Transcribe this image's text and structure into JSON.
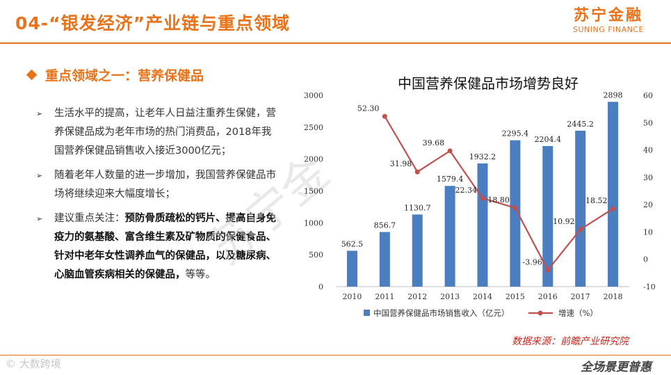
{
  "header": {
    "title": "04-“银发经济”产业链与重点领域",
    "brand_cn": "苏宁金融",
    "brand_en": "SUNING FINANCE"
  },
  "section": {
    "title": "重点领域之一：营养保健品"
  },
  "bullets": [
    {
      "marker": "➢",
      "segments": [
        {
          "text": "生活水平的提高，让老年人日益注重养生保健，营养保健品成为老年市场的热门消费品，2018年我国营养保健品销售收入接近3000亿元；",
          "bold": false
        }
      ]
    },
    {
      "marker": "➢",
      "segments": [
        {
          "text": "随着老年人数量的进一步增加，我国营养保健品市场将继续迎来大幅度增长；",
          "bold": false
        }
      ]
    },
    {
      "marker": "➢",
      "segments": [
        {
          "text": "建议重点关注：",
          "bold": false
        },
        {
          "text": "预防骨质疏松的钙片、提高自身免疫力的氨基酸、富含维生素及矿物质的保健食品、针对中老年女性调养血气的保健品，以及糖尿病、心脑血管疾病相关的保健品，",
          "bold": true
        },
        {
          "text": "等等。",
          "bold": false
        }
      ]
    }
  ],
  "watermark": "苏宁金",
  "chart_data": {
    "type": "bar",
    "title": "中国营养保健品市场增势良好",
    "categories": [
      "2010",
      "2011",
      "2012",
      "2013",
      "2014",
      "2015",
      "2016",
      "2017",
      "2018"
    ],
    "series": [
      {
        "name": "中国营养保健品市场销售收入（亿元）",
        "type": "bar",
        "axis": "left",
        "color": "#4A7EC0",
        "values": [
          562.5,
          856.7,
          1130.7,
          1579.4,
          1932.2,
          2295.4,
          2204.4,
          2445.2,
          2898
        ],
        "labels": [
          "562.5",
          "856.7",
          "1130.7",
          "1579.4",
          "1932.2",
          "2295.4",
          "2204.4",
          "2445.2",
          "2898"
        ]
      },
      {
        "name": "增速（%）",
        "type": "line",
        "axis": "right",
        "color": "#C0504D",
        "values": [
          null,
          52.3,
          31.98,
          39.68,
          22.34,
          18.8,
          -3.96,
          10.92,
          18.52
        ],
        "labels": [
          null,
          "52.30",
          "31.98",
          "39.68",
          "22.34",
          "18.80",
          "-3.96",
          "10.92",
          "18.52"
        ]
      }
    ],
    "y_left": {
      "min": 0,
      "max": 3000,
      "ticks": [
        0,
        500,
        1000,
        1500,
        2000,
        2500,
        3000
      ]
    },
    "y_right": {
      "min": -10,
      "max": 60,
      "ticks": [
        -10,
        0,
        10,
        20,
        30,
        40,
        50,
        60
      ]
    },
    "grid": false,
    "legend_position": "bottom"
  },
  "source": "数据来源：前瞻产业研究院",
  "footer": {
    "bottom_watermark": "© 大数跨境",
    "logo_text": "全场景更普惠"
  }
}
